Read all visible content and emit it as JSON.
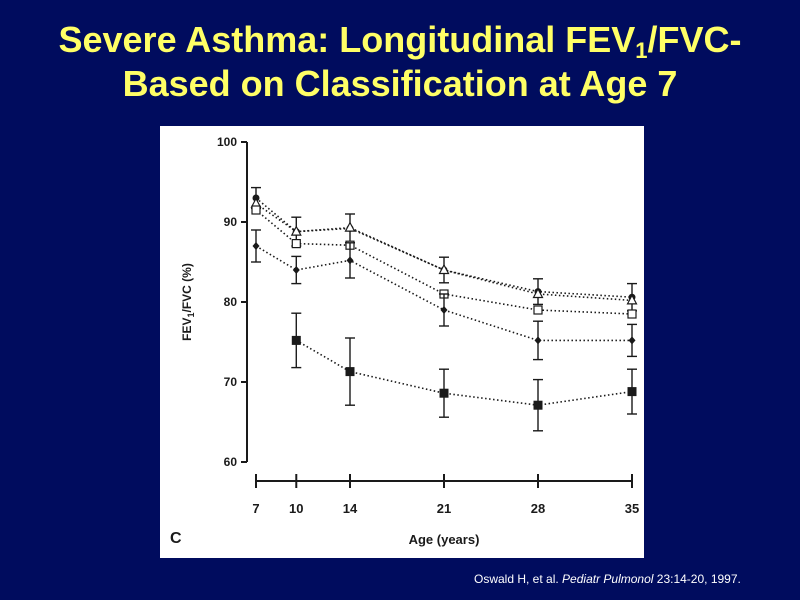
{
  "slide": {
    "title_part1": "Severe Asthma: Longitudinal FEV",
    "title_sub": "1",
    "title_part2": "/FVC-",
    "title_line2": "Based on Classification at Age 7",
    "title_color": "#ffff66",
    "background_color": "#000c5e"
  },
  "citation": {
    "authors": "Oswald H, et al.",
    "journal": "Pediatr Pulmonol",
    "reference": "23:14-20, 1997."
  },
  "chart_data": {
    "type": "line",
    "panel_label": "C",
    "xlabel": "Age (years)",
    "ylabel_main": "FEV",
    "ylabel_sub": "1",
    "ylabel_tail": "/FVC (%)",
    "x": [
      7,
      10,
      14,
      21,
      28,
      35
    ],
    "x_tick_labels": [
      "7",
      "10",
      "14",
      "21",
      "28",
      "35"
    ],
    "y_ticks": [
      60,
      70,
      80,
      90,
      100
    ],
    "ylim": [
      60,
      100
    ],
    "grid": false,
    "series": [
      {
        "marker": "filled-circle",
        "values": [
          93,
          88.8,
          89.2,
          84,
          81.3,
          80.6
        ],
        "err": [
          1.3,
          1.8,
          1.8,
          1.6,
          1.6,
          1.7
        ]
      },
      {
        "marker": "open-triangle",
        "values": [
          92.3,
          88.8,
          89.3,
          84,
          81,
          80.2
        ],
        "err": [
          0,
          0,
          0,
          0,
          0,
          0
        ]
      },
      {
        "marker": "open-square",
        "values": [
          91.5,
          87.3,
          87.1,
          81,
          79,
          78.5
        ],
        "err": [
          0,
          0,
          0,
          0,
          0,
          0
        ]
      },
      {
        "marker": "filled-diamond",
        "values": [
          87,
          84,
          85.2,
          79,
          75.2,
          75.2
        ],
        "err": [
          2,
          1.7,
          2.2,
          2,
          2.4,
          2
        ]
      },
      {
        "marker": "filled-square",
        "values": [
          75.2,
          71.3,
          68.6,
          67.1,
          68.8
        ],
        "x": [
          10,
          14,
          21,
          28,
          35
        ],
        "err": [
          3.4,
          4.2,
          3,
          3.2,
          2.8
        ]
      }
    ]
  }
}
